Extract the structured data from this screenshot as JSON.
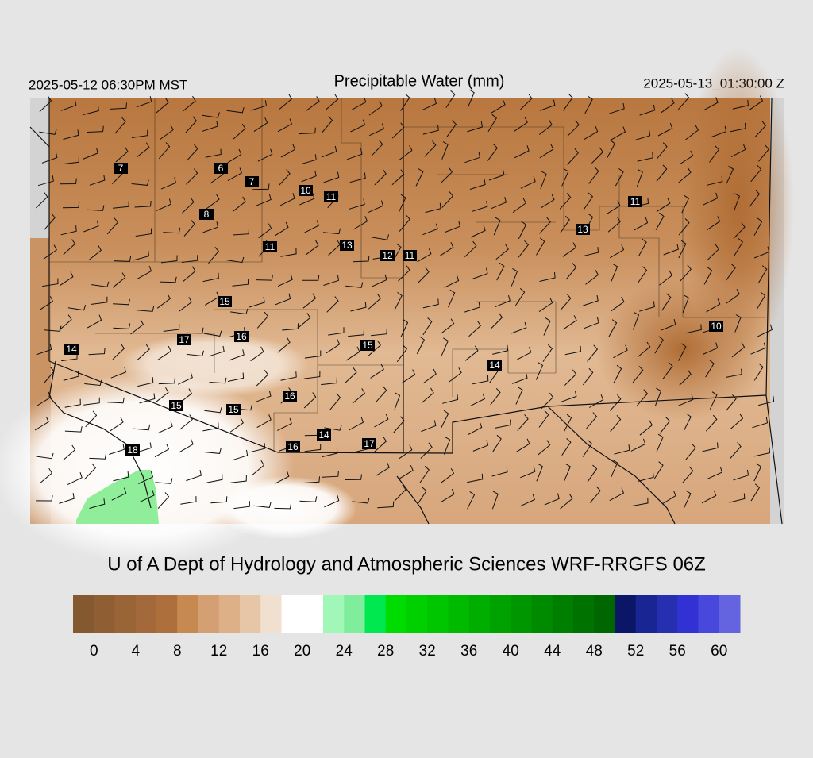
{
  "header": {
    "left": "2025-05-12 06:30PM MST",
    "title": "Precipitable Water (mm)",
    "right": "2025-05-13_01:30:00 Z"
  },
  "map": {
    "station_labels": [
      7,
      6,
      7,
      10,
      11,
      8,
      11,
      13,
      12,
      11,
      13,
      11,
      15,
      17,
      16,
      15,
      14,
      14,
      10,
      16,
      15,
      15,
      14,
      16,
      17,
      18
    ]
  },
  "footer": {
    "title": "U of A Dept of Hydrology and Atmospheric Sciences WRF-RRGFS 06Z"
  },
  "colorbar": {
    "lim": [
      -2,
      62
    ],
    "ticks": [
      0,
      4,
      8,
      12,
      16,
      20,
      24,
      28,
      32,
      36,
      40,
      44,
      48,
      52,
      56,
      60
    ],
    "colors": [
      "#85592f",
      "#8f5e33",
      "#996436",
      "#a3693a",
      "#ad703d",
      "#c68a50",
      "#d49f73",
      "#ddb088",
      "#e7c6a7",
      "#f1e0d0",
      "#ffffff",
      "#ffffff",
      "#a0f7b8",
      "#7fed9c",
      "#00e850",
      "#00dc00",
      "#00d000",
      "#00c600",
      "#00ba00",
      "#00ae00",
      "#00a200",
      "#009600",
      "#008a00",
      "#007e00",
      "#007200",
      "#006600",
      "#0c1666",
      "#1a2594",
      "#262fb0",
      "#3232d4",
      "#4848dc",
      "#6464e0"
    ]
  }
}
